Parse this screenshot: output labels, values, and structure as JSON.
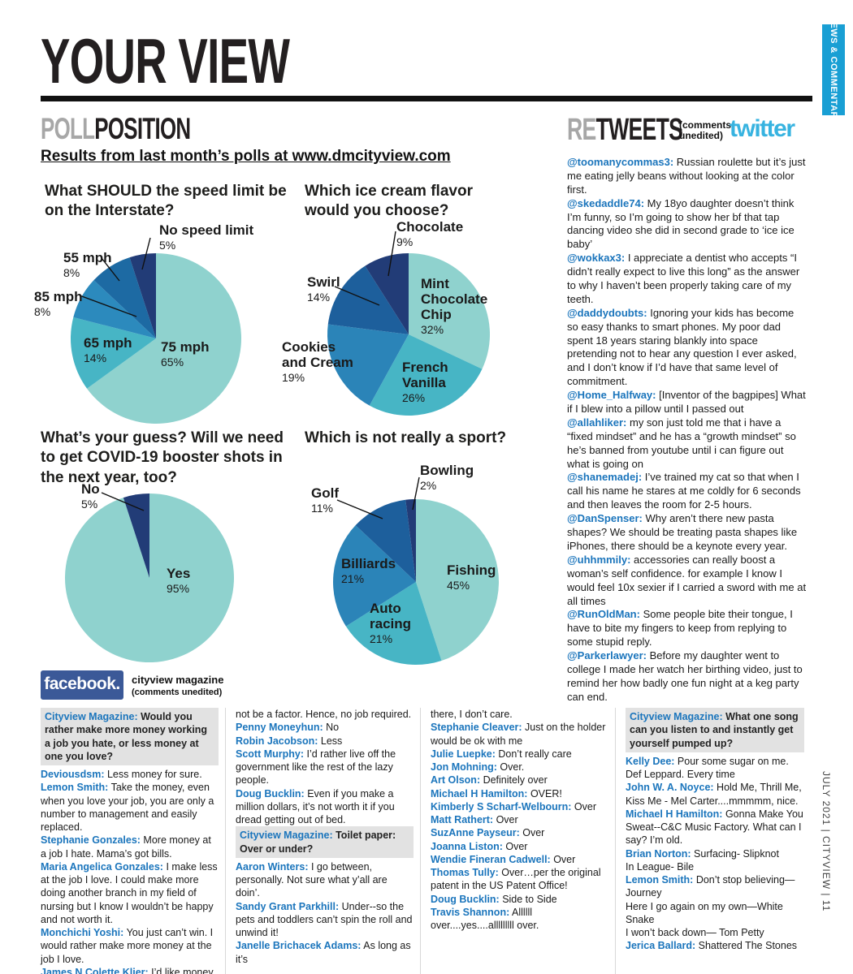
{
  "page": {
    "title": "YOUR VIEW",
    "sidebar_tab": "NEWS & COMMENTARY",
    "footer_vertical": "JULY 2021  |  CITYVIEW  |  11"
  },
  "colors": {
    "tab_cyan": "#199fd4",
    "twitter_blue": "#37b3e0",
    "facebook_blue": "#3b5998",
    "name_blue": "#1b75bc",
    "heading_gray": "#a7a7a7",
    "question_highlight": "#e2e2e2"
  },
  "poll": {
    "heading_gray": "POLL",
    "heading_black": "POSITION",
    "subheading": "Results from last month’s polls at www.dmcityview.com"
  },
  "chart_data": [
    {
      "type": "pie",
      "title": "What SHOULD the speed limit be on the Interstate?",
      "slices": [
        {
          "label": "75 mph",
          "pct": "65%",
          "value": 65
        },
        {
          "label": "65 mph",
          "pct": "14%",
          "value": 14
        },
        {
          "label": "85 mph",
          "pct": "8%",
          "value": 8
        },
        {
          "label": "55 mph",
          "pct": "8%",
          "value": 8
        },
        {
          "label": "No speed limit",
          "pct": "5%",
          "value": 5
        }
      ],
      "colors": [
        "#8fd2ce",
        "#47b5c5",
        "#2c8abd",
        "#1d6aa3",
        "#223c77"
      ]
    },
    {
      "type": "pie",
      "title": "Which ice cream flavor would you choose?",
      "slices": [
        {
          "label": "Mint Chocolate Chip",
          "pct": "32%",
          "value": 32
        },
        {
          "label": "French Vanilla",
          "pct": "26%",
          "value": 26
        },
        {
          "label": "Cookies and Cream",
          "pct": "19%",
          "value": 19
        },
        {
          "label": "Swirl",
          "pct": "14%",
          "value": 14
        },
        {
          "label": "Chocolate",
          "pct": "9%",
          "value": 9
        }
      ],
      "colors": [
        "#8fd2ce",
        "#47b5c5",
        "#2b84b8",
        "#1d5f9c",
        "#223c77"
      ]
    },
    {
      "type": "pie",
      "title": "What’s your guess? Will we need to get COVID-19 booster shots in the next year, too?",
      "slices": [
        {
          "label": "Yes",
          "pct": "95%",
          "value": 95
        },
        {
          "label": "No",
          "pct": "5%",
          "value": 5
        }
      ],
      "colors": [
        "#8fd2ce",
        "#223c77"
      ]
    },
    {
      "type": "pie",
      "title": "Which is not really a sport?",
      "slices": [
        {
          "label": "Fishing",
          "pct": "45%",
          "value": 45
        },
        {
          "label": "Auto racing",
          "pct": "21%",
          "value": 21
        },
        {
          "label": "Billiards",
          "pct": "21%",
          "value": 21
        },
        {
          "label": "Golf",
          "pct": "11%",
          "value": 11
        },
        {
          "label": "Bowling",
          "pct": "2%",
          "value": 2
        }
      ],
      "colors": [
        "#8fd2ce",
        "#47b5c5",
        "#2b84b8",
        "#1d5f9c",
        "#223c77"
      ]
    }
  ],
  "retweets": {
    "heading_gray": "RE",
    "heading_black": "TWEETS",
    "note": "(comments unedited)",
    "logo": "twitter",
    "tweets": [
      {
        "handle": "@toomanycommas3:",
        "text": "Russian roulette but it’s just me eating jelly beans without looking at the color first."
      },
      {
        "handle": "@skedaddle74:",
        "text": "My 18yo daughter doesn’t think I’m funny, so I’m going to show her bf that tap dancing video she did in second grade to ‘ice ice baby’"
      },
      {
        "handle": "@wokkax3:",
        "text": "I appreciate a dentist who accepts “I didn’t really expect to live this long” as the answer to why I haven’t been properly taking care of my teeth."
      },
      {
        "handle": "@daddydoubts:",
        "text": "Ignoring your kids has become so easy thanks to smart phones. My poor dad spent 18 years staring blankly into space pretending not to hear any question I ever asked, and I don’t know if I’d have that same level of commitment."
      },
      {
        "handle": "@Home_Halfway:",
        "text": "[Inventor of the bagpipes] What if I blew into a pillow until I passed out"
      },
      {
        "handle": "@allahliker:",
        "text": "my son just told me that i have a “fixed mindset” and he has a “growth mindset” so he’s banned from youtube until i can figure out what is going on"
      },
      {
        "handle": "@shanemadej:",
        "text": "I’ve trained my cat so that when I call his name he stares at me coldly for 6 seconds and then leaves the room for 2-5 hours."
      },
      {
        "handle": "@DanSpenser:",
        "text": "Why aren’t there new pasta shapes? We should be treating pasta shapes like iPhones, there should be a keynote every year."
      },
      {
        "handle": "@uhhmmily:",
        "text": "accessories can really boost a woman’s self confidence. for example I know I would feel 10x sexier if I carried a sword with me at all times"
      },
      {
        "handle": "@RunOldMan:",
        "text": "Some people bite their tongue, I have to bite my fingers to keep from replying to some stupid reply."
      },
      {
        "handle": "@Parkerlawyer:",
        "text": "Before my daughter went to college I made her watch her birthing video, just to remind her how badly one fun night at a keg party can end."
      }
    ]
  },
  "facebook": {
    "logo": "facebook.",
    "source": "cityview magazine",
    "note": "(comments unedited)",
    "columns": [
      [
        {
          "type": "question",
          "name": "Cityview Magazine:",
          "text": "Would you rather make more money working a job you hate, or less money at one you love?"
        },
        {
          "type": "comment",
          "name": "Deviousdsm:",
          "text": "Less money for sure."
        },
        {
          "type": "comment",
          "name": "Lemon Smith:",
          "text": "Take the money, even when you love your job, you are only a number to management and easily replaced."
        },
        {
          "type": "comment",
          "name": "Stephanie Gonzales:",
          "text": "More money at a job I hate. Mama’s got bills."
        },
        {
          "type": "comment",
          "name": "Maria Angelica Gonzales:",
          "text": "I make less at the job I love. I could make more doing another branch in my field of nursing but I know I wouldn’t be happy and not worth it."
        },
        {
          "type": "comment",
          "name": "Monchichi Yoshi:",
          "text": "You just can’t win. I would rather make more money at the job I love."
        },
        {
          "type": "comment",
          "name": "James N Colette Klier:",
          "text": "I’d like money to"
        }
      ],
      [
        {
          "type": "continuation",
          "text": "not be a factor. Hence, no job required."
        },
        {
          "type": "comment",
          "name": "Penny Moneyhun:",
          "text": "No"
        },
        {
          "type": "comment",
          "name": "Robin Jacobson:",
          "text": "Less"
        },
        {
          "type": "comment",
          "name": "Scott Murphy:",
          "text": "I’d rather live off the government like the rest of the lazy people."
        },
        {
          "type": "comment",
          "name": "Doug Bucklin:",
          "text": "Even if you make a million dollars, it’s not worth it if you dread getting out of bed."
        },
        {
          "type": "question",
          "name": "Cityview Magazine:",
          "text": "Toilet paper: Over or under?"
        },
        {
          "type": "comment",
          "name": "Aaron Winters:",
          "text": "I go between, personally. Not sure what y’all are doin’."
        },
        {
          "type": "comment",
          "name": "Sandy Grant Parkhill:",
          "text": "Under--so the pets and toddlers can’t spin the roll and unwind it!"
        },
        {
          "type": "comment",
          "name": "Janelle Brichacek Adams:",
          "text": "As long as it’s"
        }
      ],
      [
        {
          "type": "continuation",
          "text": "there, I don’t care."
        },
        {
          "type": "comment",
          "name": "Stephanie Cleaver:",
          "text": "Just on the holder would be ok with me"
        },
        {
          "type": "comment",
          "name": "Julie Luepke:",
          "text": "Don’t really care"
        },
        {
          "type": "comment",
          "name": "Jon Mohning:",
          "text": "Over."
        },
        {
          "type": "comment",
          "name": "Art Olson:",
          "text": "Definitely over"
        },
        {
          "type": "comment",
          "name": "Michael H Hamilton:",
          "text": "OVER!"
        },
        {
          "type": "comment",
          "name": "Kimberly S Scharf-Welbourn:",
          "text": "Over"
        },
        {
          "type": "comment",
          "name": "Matt Rathert:",
          "text": "Over"
        },
        {
          "type": "comment",
          "name": "SuzAnne Payseur:",
          "text": "Over"
        },
        {
          "type": "comment",
          "name": "Joanna Liston:",
          "text": "Over"
        },
        {
          "type": "comment",
          "name": "Wendie Fineran Cadwell:",
          "text": "Over"
        },
        {
          "type": "comment",
          "name": "Thomas Tully:",
          "text": "Over…per the original patent in the US Patent Office!"
        },
        {
          "type": "comment",
          "name": "Doug Bucklin:",
          "text": "Side to Side"
        },
        {
          "type": "comment",
          "name": "Travis Shannon:",
          "text": "Allllll over....yes....alllllllll over."
        }
      ],
      [
        {
          "type": "question",
          "name": "Cityview Magazine:",
          "text": "What one song can you listen to and instantly get yourself pumped up?"
        },
        {
          "type": "comment",
          "name": "Kelly Dee:",
          "text": "Pour some sugar on me. Def Leppard. Every time"
        },
        {
          "type": "comment",
          "name": "John W. A. Noyce:",
          "text": "Hold Me, Thrill Me, Kiss Me - Mel Carter....mmmmm, nice."
        },
        {
          "type": "comment",
          "name": "Michael H Hamilton:",
          "text": "Gonna Make You Sweat--C&C Music Factory. What can I say? I’m old."
        },
        {
          "type": "comment",
          "name": "Brian Norton:",
          "text": "Surfacing- Slipknot\nIn League- Bile"
        },
        {
          "type": "comment",
          "name": "Lemon Smith:",
          "text": "Don’t stop believing—Journey\nHere I go again on my own—White Snake\nI won’t back down— Tom Petty"
        },
        {
          "type": "comment",
          "name": "Jerica Ballard:",
          "text": "Shattered The Stones"
        }
      ]
    ]
  }
}
